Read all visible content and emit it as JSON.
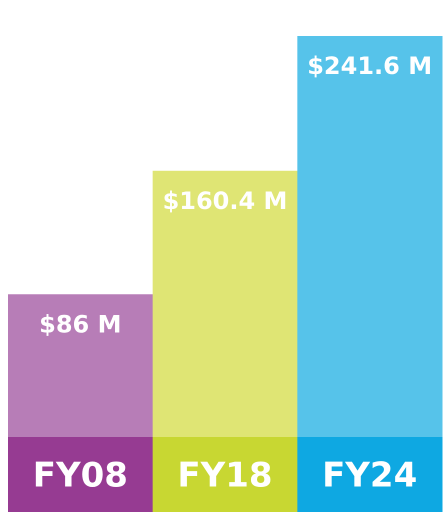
{
  "chart_data": {
    "type": "bar",
    "categories": [
      "FY08",
      "FY18",
      "FY24"
    ],
    "values": [
      86,
      160.4,
      241.6
    ],
    "value_labels": [
      "$86 M",
      "$160.4 M",
      "$241.6 M"
    ],
    "unit": "$ M",
    "colors": {
      "bar": [
        "#b77db7",
        "#dfe574",
        "#56c3ea"
      ],
      "base": [
        "#963b92",
        "#c8d732",
        "#0ea8e2"
      ]
    }
  }
}
